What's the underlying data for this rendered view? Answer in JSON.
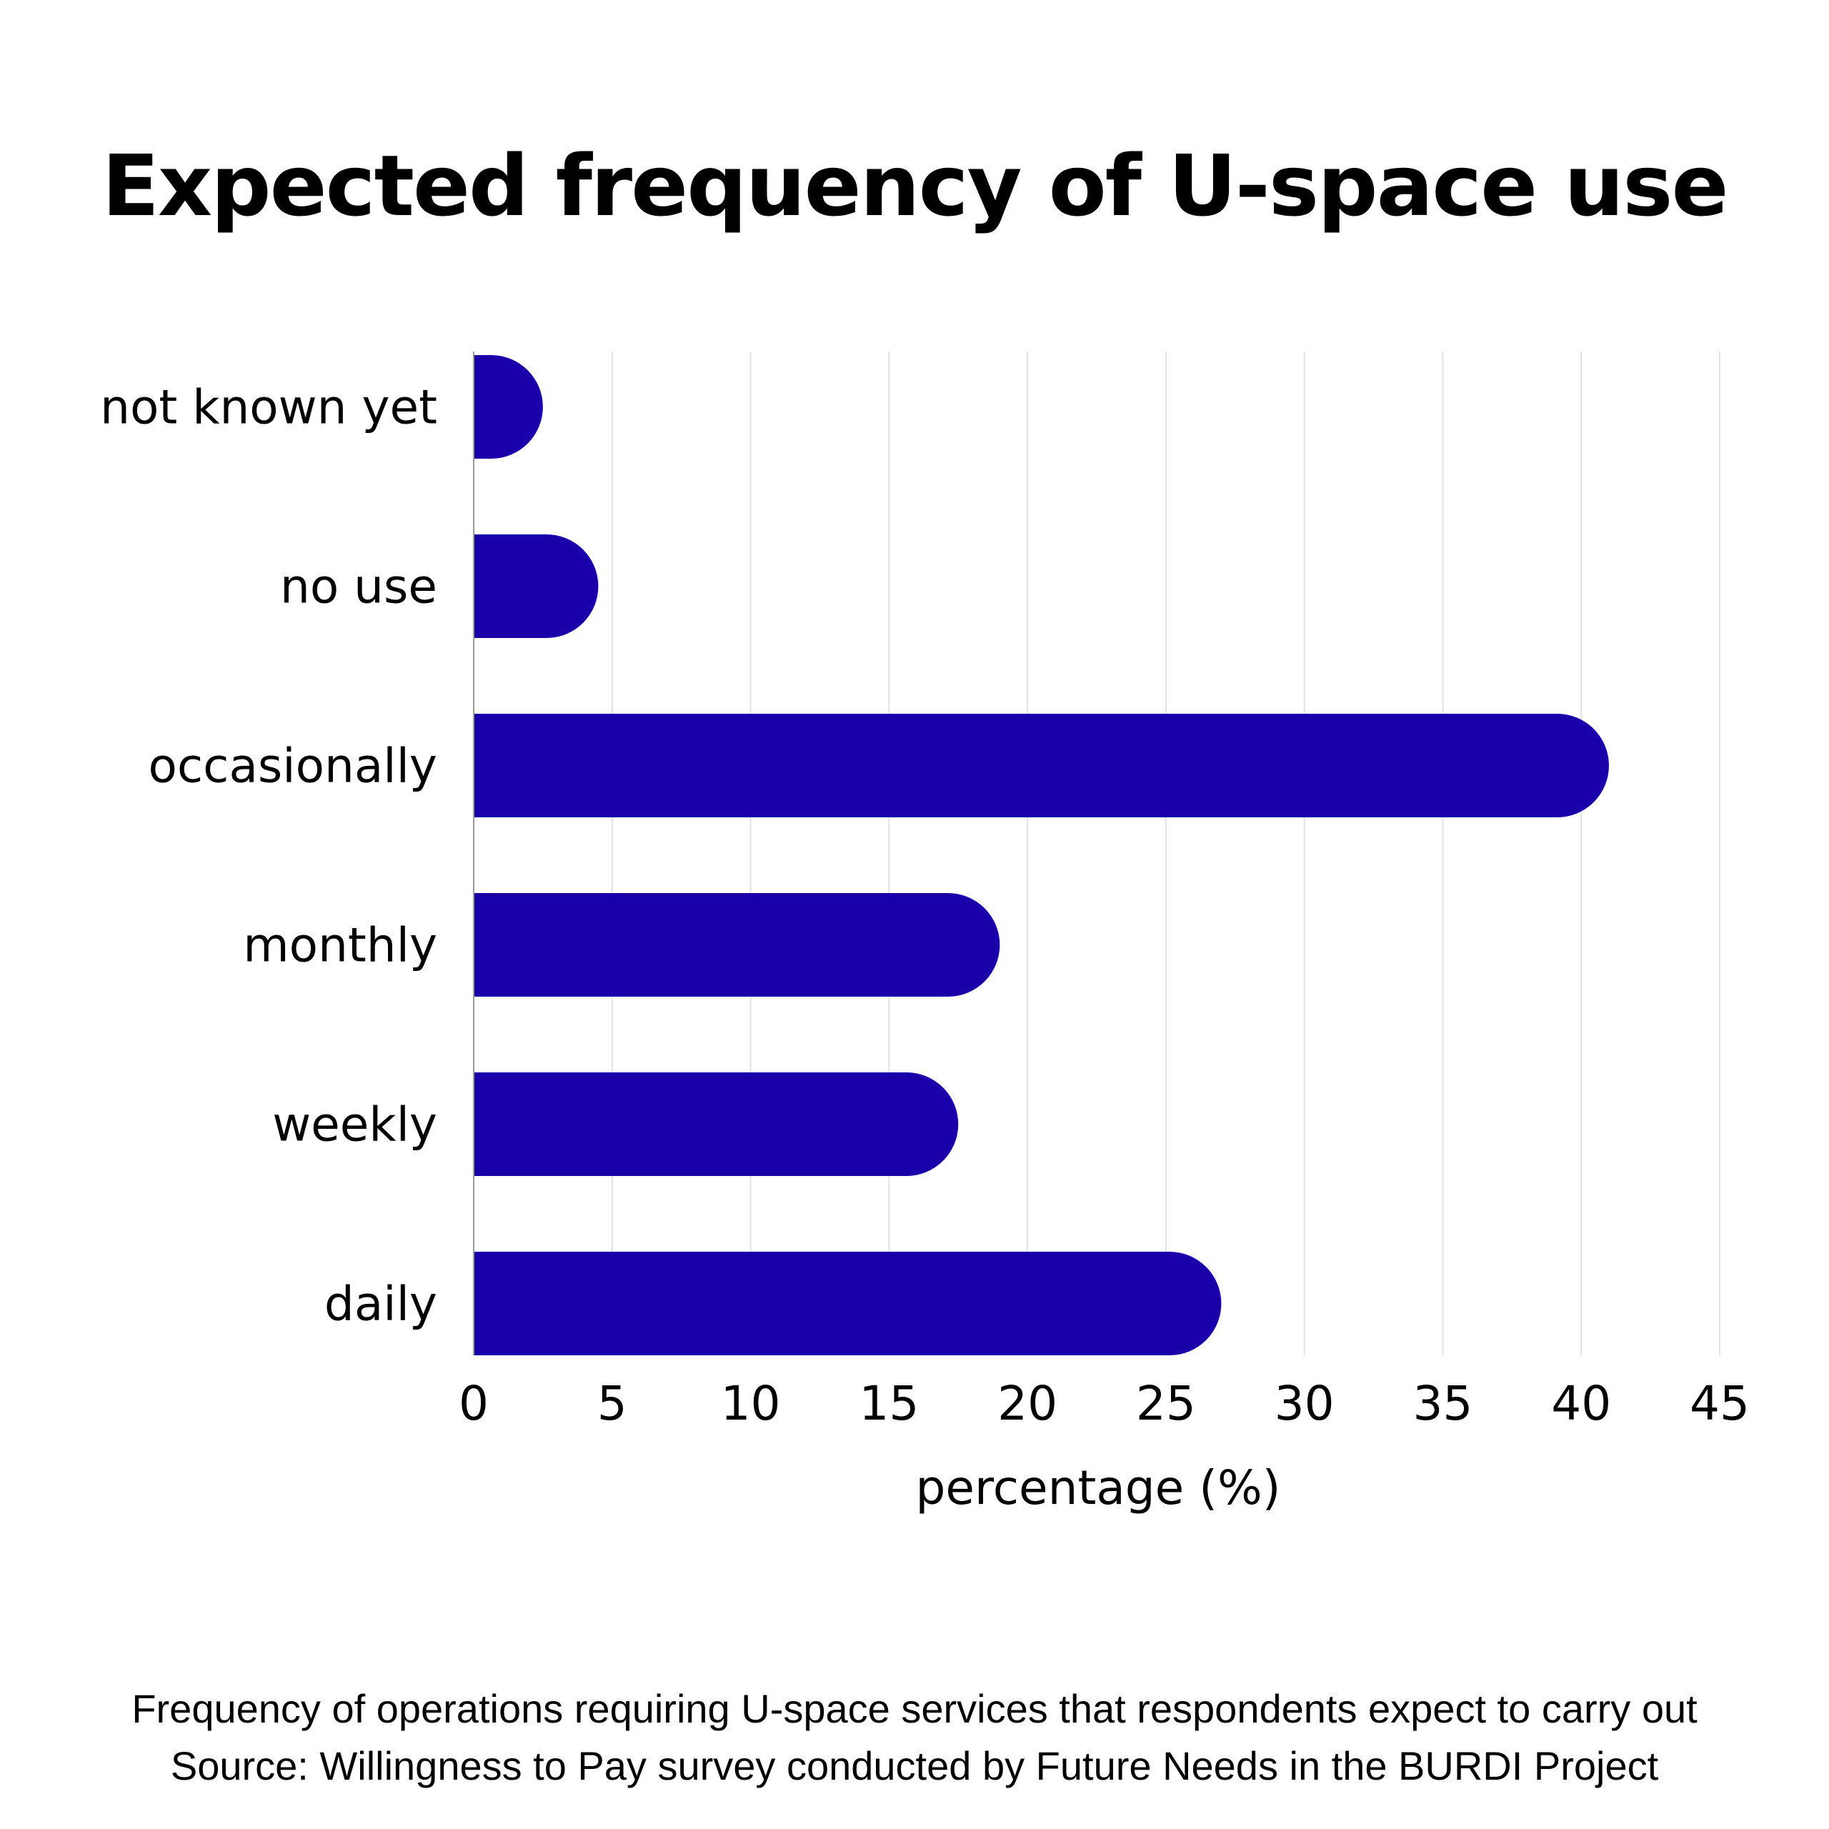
{
  "chart_data": {
    "type": "bar",
    "orientation": "horizontal",
    "title": "Expected frequency of U-space use",
    "categories": [
      "not known yet",
      "no use",
      "occasionally",
      "monthly",
      "weekly",
      "daily"
    ],
    "values": [
      2.5,
      4.5,
      41,
      19,
      17.5,
      27
    ],
    "xlabel": "percentage (%)",
    "ylabel": "",
    "xlim": [
      0,
      45
    ],
    "xticks": [
      0,
      5,
      10,
      15,
      20,
      25,
      30,
      35,
      40,
      45
    ],
    "grid": "vertical",
    "legend": "none",
    "bar_color": "#1a00a8",
    "grid_color": "#e2e2e2",
    "axis_color": "#9a9a9a"
  },
  "caption": {
    "line1": "Frequency of operations requiring U-space services that respondents expect to carry out",
    "line2": "Source: Willingness to Pay survey conducted by Future Needs in the BURDI Project"
  }
}
